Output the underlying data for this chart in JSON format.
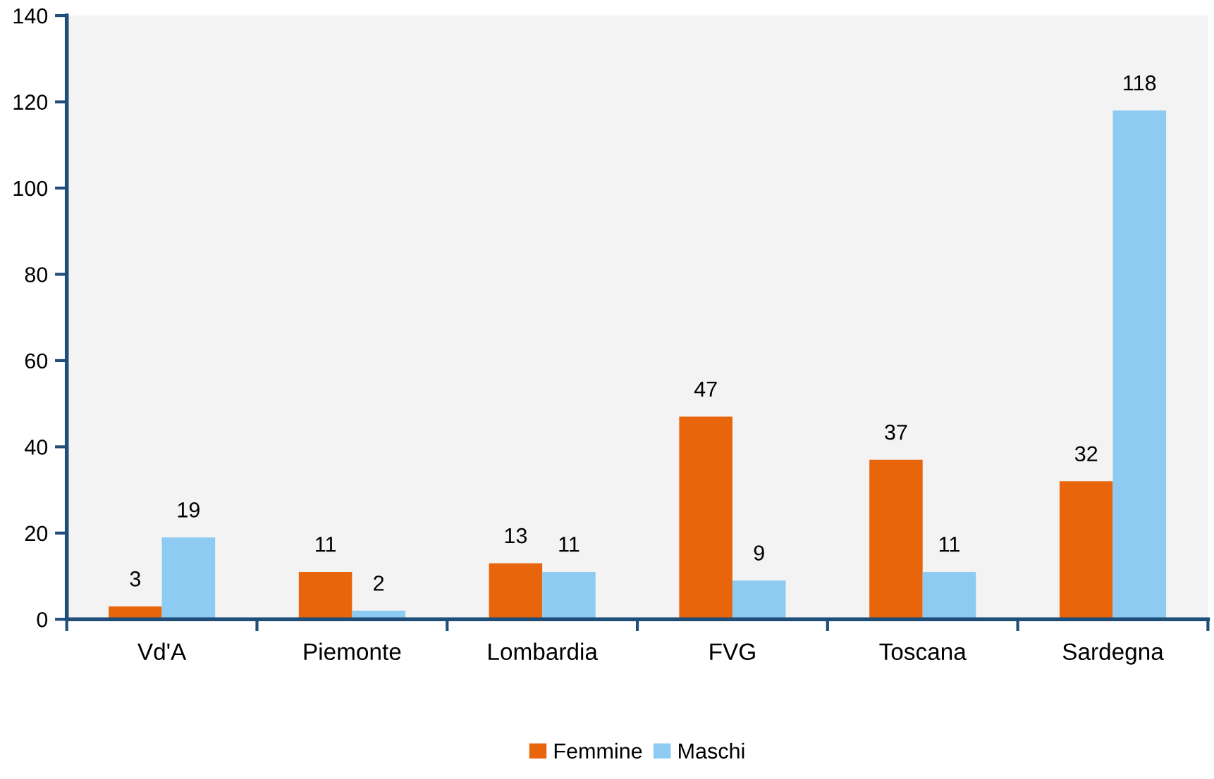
{
  "chart_data": {
    "type": "bar",
    "categories": [
      "Vd'A",
      "Piemonte",
      "Lombardia",
      "FVG",
      "Toscana",
      "Sardegna"
    ],
    "series": [
      {
        "name": "Femmine",
        "color": "#e8650c",
        "values": [
          3,
          11,
          13,
          47,
          37,
          32
        ]
      },
      {
        "name": "Maschi",
        "color": "#8ecbf2",
        "values": [
          19,
          2,
          11,
          9,
          11,
          118
        ]
      }
    ],
    "ylim": [
      0,
      140
    ],
    "yticks": [
      0,
      20,
      40,
      60,
      80,
      100,
      120,
      140
    ],
    "data_labels": true,
    "grid": false,
    "legend": "bottom"
  }
}
